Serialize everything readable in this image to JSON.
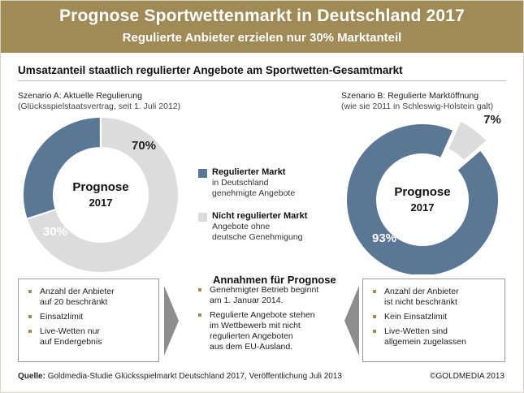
{
  "header": {
    "title": "Prognose Sportwettenmarkt in Deutschland 2017",
    "subtitle": "Regulierte Anbieter erzielen nur 30% Marktanteil"
  },
  "subheading": "Umsatzanteil staatlich regulierter Angebote am Sportwetten-Gesamtmarkt",
  "colors": {
    "regulated": "#5b7796",
    "unregulated": "#dcdcdc",
    "header_bg": "#a08a56",
    "bullet": "#a08a56"
  },
  "chart_data": [
    {
      "type": "pie",
      "title": "Szenario A: Aktuelle Regulierung",
      "subtitle": "(Glücksspielstaatsvertrag, seit 1. Juli 2012)",
      "center_label": [
        "Prognose",
        "2017"
      ],
      "categories": [
        "Regulierter Markt",
        "Nicht regulierter Markt"
      ],
      "values": [
        30,
        70
      ],
      "labels": [
        "30%",
        "70%"
      ]
    },
    {
      "type": "pie",
      "title": "Szenario B: Regulierte Marktöffnung",
      "subtitle": "(wie sie 2011 in Schleswig-Holstein galt)",
      "center_label": [
        "Prognose",
        "2017"
      ],
      "categories": [
        "Regulierter Markt",
        "Nicht regulierter Markt"
      ],
      "values": [
        93,
        7
      ],
      "labels": [
        "93%",
        "7%"
      ]
    }
  ],
  "legend": [
    {
      "title": "Regulierter Markt",
      "desc1": "in Deutschland",
      "desc2": "genehmigte Angebote"
    },
    {
      "title": "Nicht regulierter Markt",
      "desc1": "Angebote ohne",
      "desc2": "deutsche Genehmigung"
    }
  ],
  "assumptions": {
    "title": "Annahmen für Prognose",
    "left": [
      [
        "Anzahl der Anbieter",
        "auf 20 beschränkt"
      ],
      [
        "Einsatzlimit"
      ],
      [
        "Live-Wetten nur",
        "auf Endergebnis"
      ]
    ],
    "center": [
      [
        "Genehmigter Betrieb beginnt",
        "am 1. Januar 2014."
      ],
      [
        "Regulierte Angebote stehen",
        "im Wettbewerb mit nicht",
        "regulierten Angeboten",
        "aus dem EU-Ausland."
      ]
    ],
    "right": [
      [
        "Anzahl der Anbieter",
        "ist nicht beschränkt"
      ],
      [
        "Kein Einsatzlimit"
      ],
      [
        "Live-Wetten sind",
        "allgemein zugelassen"
      ]
    ]
  },
  "footer": {
    "source_label": "Quelle:",
    "source_text": "Goldmedia-Studie Glücksspielmarkt Deutschland 2017, Veröffentlichung Juli 2013",
    "copyright": "©GOLDMEDIA 2013"
  }
}
